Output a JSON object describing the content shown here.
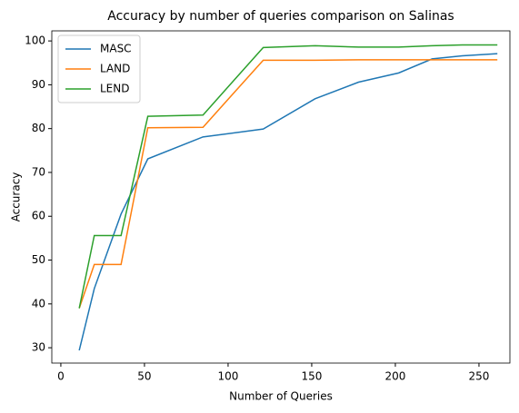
{
  "chart_data": {
    "type": "line",
    "title": "Accuracy by number of queries comparison on Salinas",
    "x_label": "Number of Queries",
    "y_label": "Accuracy",
    "x": [
      11,
      20,
      36,
      52,
      85,
      121,
      152,
      178,
      202,
      222,
      240,
      261
    ],
    "series": [
      {
        "name": "MASC",
        "color": "#1f77b4",
        "values": [
          29.4,
          43.5,
          60.5,
          73.1,
          78.1,
          79.9,
          86.8,
          90.6,
          92.7,
          95.9,
          96.6,
          97.1
        ]
      },
      {
        "name": "LAND",
        "color": "#ff7f0e",
        "values": [
          39,
          49,
          49,
          80.2,
          80.3,
          95.6,
          95.6,
          95.7,
          95.7,
          95.7,
          95.7,
          95.7
        ]
      },
      {
        "name": "LEND",
        "color": "#2ca02c",
        "values": [
          39,
          55.6,
          55.6,
          82.8,
          83.1,
          98.5,
          98.9,
          98.6,
          98.6,
          98.9,
          99.1,
          99.1
        ]
      }
    ],
    "xlim": [
      -5.4,
      268.5
    ],
    "ylim": [
      26.5,
      102.3
    ],
    "xticks": [
      0,
      50,
      100,
      150,
      200,
      250
    ],
    "yticks": [
      30,
      40,
      50,
      60,
      70,
      80,
      90,
      100
    ],
    "legend": "upper-left"
  }
}
